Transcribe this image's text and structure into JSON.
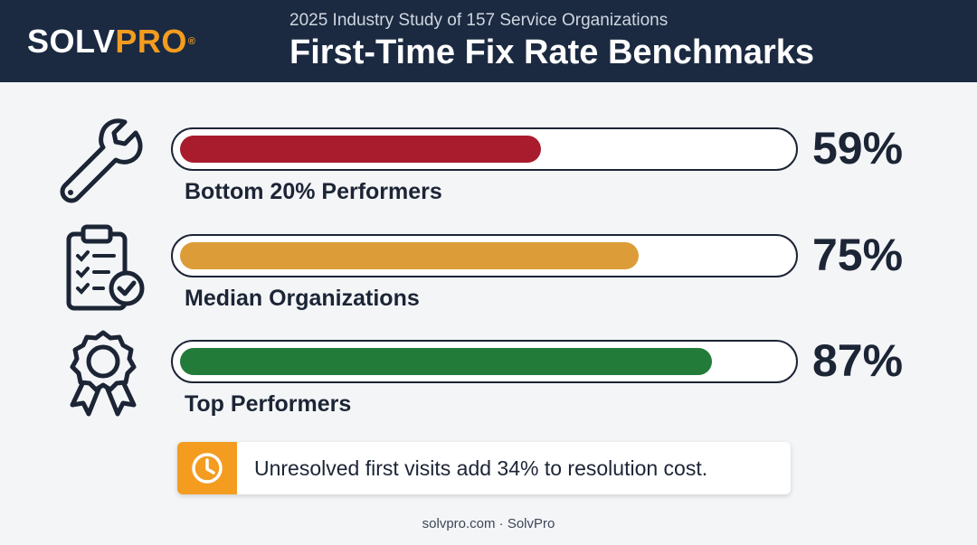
{
  "header": {
    "logo_part1": "SOLV",
    "logo_part2": "PRO",
    "logo_reg": "®",
    "subtitle": "2025 Industry Study of 157 Service Organizations",
    "title": "First-Time Fix Rate Benchmarks"
  },
  "chart_data": {
    "type": "bar",
    "orientation": "horizontal",
    "title": "First-Time Fix Rate Benchmarks",
    "xlim": [
      0,
      100
    ],
    "grid": false,
    "categories": [
      "Bottom 20% Performers",
      "Median Organizations",
      "Top Performers"
    ],
    "values": [
      59,
      75,
      87
    ],
    "value_labels": [
      "59%",
      "75%",
      "87%"
    ],
    "colors": [
      "#a81c2e",
      "#dc9d38",
      "#237b3a"
    ],
    "icons": [
      "wrench-icon",
      "clipboard-checklist-icon",
      "award-ribbon-icon"
    ]
  },
  "callout": {
    "icon": "clock-icon",
    "text": "Unresolved first visits add 34% to resolution cost."
  },
  "footer": {
    "text": "solvpro.com · SolvPro"
  },
  "colors": {
    "header_bg": "#1b2a41",
    "accent": "#f39c1f",
    "page_bg": "#f4f5f7"
  }
}
